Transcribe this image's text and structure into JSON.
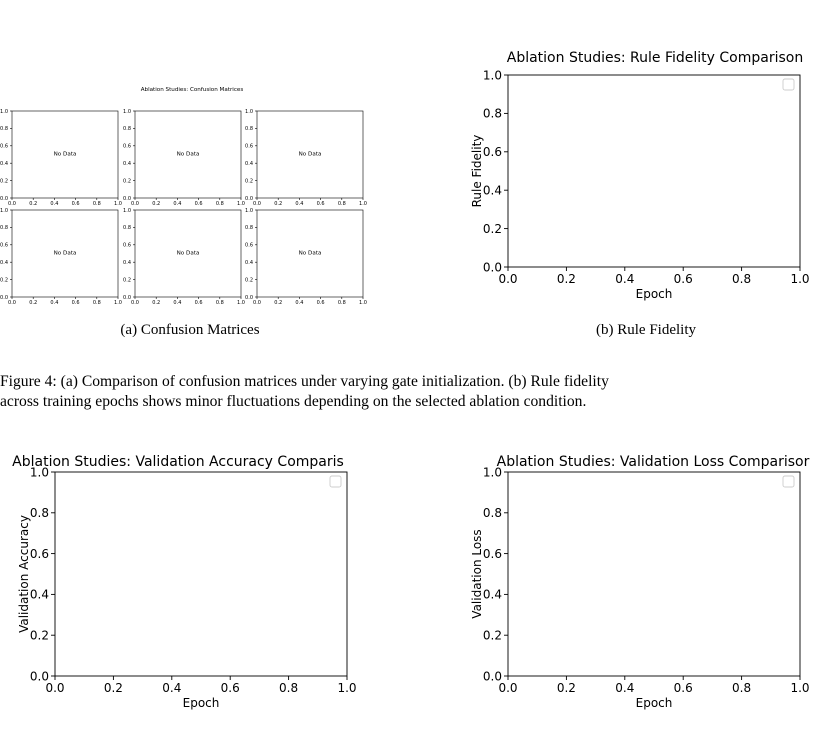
{
  "figure_a": {
    "title": "Ablation Studies: Confusion Matrices",
    "panel_text": "No Data",
    "subcaption": "(a)  Confusion Matrices"
  },
  "figure_b": {
    "subcaption": "(b)  Rule Fidelity"
  },
  "figure_caption": {
    "line1": "Figure 4: (a) Comparison of confusion matrices under varying gate initialization. (b) Rule fidelity",
    "line2": "across training epochs shows minor fluctuations depending on the selected ablation condition."
  },
  "chart_data": [
    {
      "type": "heatmap",
      "title": "Ablation Studies: Confusion Matrices",
      "grid": [
        2,
        3
      ],
      "panels": [
        {
          "text": "No Data",
          "xlim": [
            0.0,
            1.0
          ],
          "ylim": [
            0.0,
            1.0
          ]
        },
        {
          "text": "No Data",
          "xlim": [
            0.0,
            1.0
          ],
          "ylim": [
            0.0,
            1.0
          ]
        },
        {
          "text": "No Data",
          "xlim": [
            0.0,
            1.0
          ],
          "ylim": [
            0.0,
            1.0
          ]
        },
        {
          "text": "No Data",
          "xlim": [
            0.0,
            1.0
          ],
          "ylim": [
            0.0,
            1.0
          ]
        },
        {
          "text": "No Data",
          "xlim": [
            0.0,
            1.0
          ],
          "ylim": [
            0.0,
            1.0
          ]
        },
        {
          "text": "No Data",
          "xlim": [
            0.0,
            1.0
          ],
          "ylim": [
            0.0,
            1.0
          ]
        }
      ],
      "x_ticks": [
        "0.0",
        "0.2",
        "0.4",
        "0.6",
        "0.8",
        "1.0"
      ],
      "y_ticks": [
        "0.0",
        "0.2",
        "0.4",
        "0.6",
        "0.8",
        "1.0"
      ]
    },
    {
      "type": "line",
      "title": "Ablation Studies: Rule Fidelity Comparison",
      "xlabel": "Epoch",
      "ylabel": "Rule Fidelity",
      "xlim": [
        0.0,
        1.0
      ],
      "ylim": [
        0.0,
        1.0
      ],
      "x_ticks": [
        "0.0",
        "0.2",
        "0.4",
        "0.6",
        "0.8",
        "1.0"
      ],
      "y_ticks": [
        "0.0",
        "0.2",
        "0.4",
        "0.6",
        "0.8",
        "1.0"
      ],
      "series": [],
      "legend": "top-right (empty)",
      "grid": false
    },
    {
      "type": "line",
      "title": "Ablation Studies: Validation Accuracy Comparis",
      "xlabel": "Epoch",
      "ylabel": "Validation Accuracy",
      "xlim": [
        0.0,
        1.0
      ],
      "ylim": [
        0.0,
        1.0
      ],
      "x_ticks": [
        "0.0",
        "0.2",
        "0.4",
        "0.6",
        "0.8",
        "1.0"
      ],
      "y_ticks": [
        "0.0",
        "0.2",
        "0.4",
        "0.6",
        "0.8",
        "1.0"
      ],
      "series": [],
      "legend": "top-right (empty)",
      "grid": false
    },
    {
      "type": "line",
      "title": "Ablation Studies: Validation Loss Comparisor",
      "xlabel": "Epoch",
      "ylabel": "Validation Loss",
      "xlim": [
        0.0,
        1.0
      ],
      "ylim": [
        0.0,
        1.0
      ],
      "x_ticks": [
        "0.0",
        "0.2",
        "0.4",
        "0.6",
        "0.8",
        "1.0"
      ],
      "y_ticks": [
        "0.0",
        "0.2",
        "0.4",
        "0.6",
        "0.8",
        "1.0"
      ],
      "series": [],
      "legend": "top-right (empty)",
      "grid": false
    }
  ]
}
